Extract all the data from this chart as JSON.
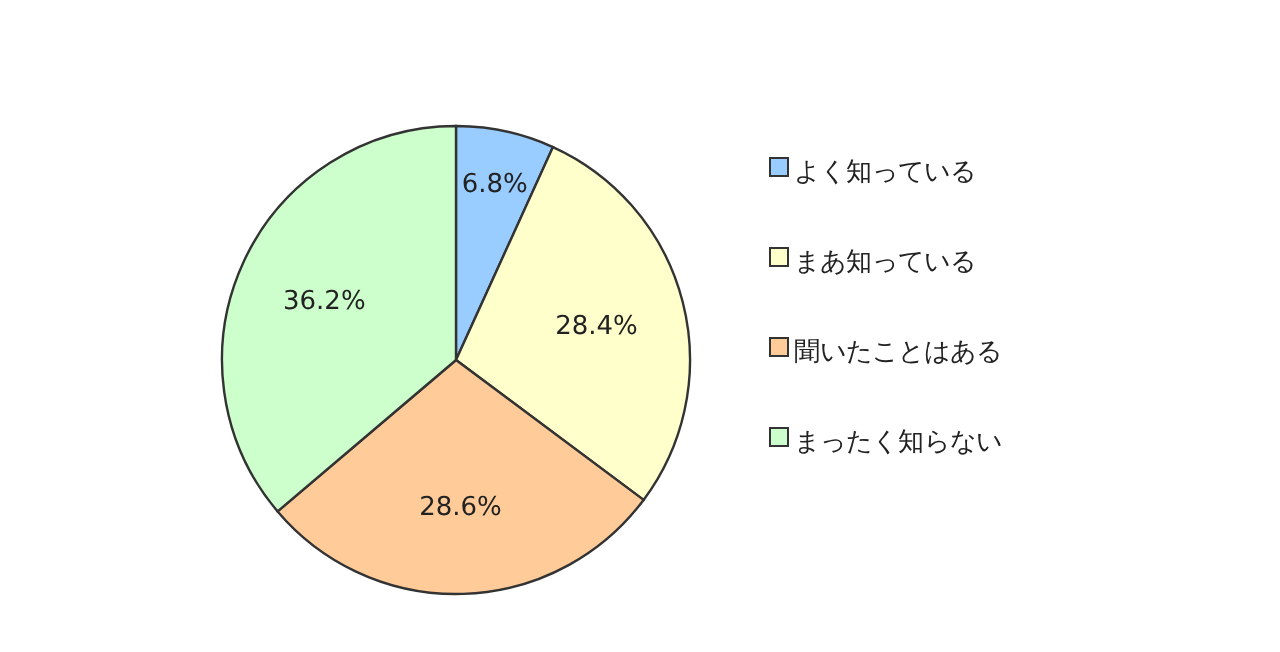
{
  "chart_data": {
    "type": "pie",
    "categories": [
      "よく知っている",
      "まあ知っている",
      "聞いたことはある",
      "まったく知らない"
    ],
    "values": [
      6.8,
      28.4,
      28.6,
      36.2
    ],
    "colors": [
      "#99ccff",
      "#ffffcc",
      "#ffcc99",
      "#ccffcc"
    ],
    "value_labels": [
      "6.8%",
      "28.4%",
      "28.6%",
      "36.2%"
    ],
    "legend": "right"
  }
}
